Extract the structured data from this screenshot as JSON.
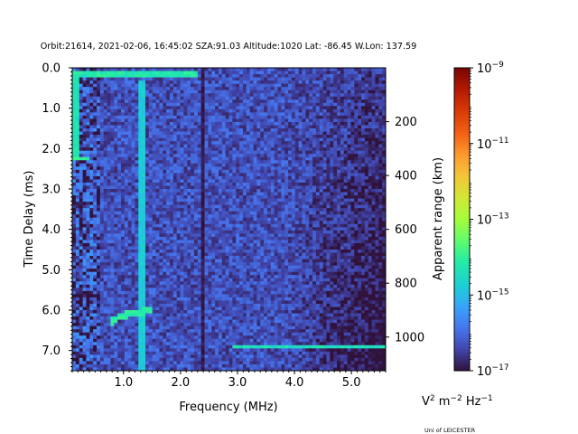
{
  "chart_data": {
    "type": "heatmap",
    "title": "Orbit:21614, 2021-02-06, 16:45:02 SZA:91.03 Altitude:1020 Lat: -86.45 W.Lon: 137.59",
    "xlabel": "Frequency (MHz)",
    "ylabel": "Time Delay (ms)",
    "y2label": "Apparent range (km)",
    "xlim": [
      0.1,
      5.6
    ],
    "ylim": [
      7.5,
      0.0
    ],
    "y2lim": [
      1125,
      0
    ],
    "x_ticks": [
      "1.0",
      "2.0",
      "3.0",
      "4.0",
      "5.0"
    ],
    "x_tick_values": [
      1.0,
      2.0,
      3.0,
      4.0,
      5.0
    ],
    "y_ticks": [
      "0.0",
      "1.0",
      "2.0",
      "3.0",
      "4.0",
      "5.0",
      "6.0",
      "7.0"
    ],
    "y_tick_values": [
      0.0,
      1.0,
      2.0,
      3.0,
      4.0,
      5.0,
      6.0,
      7.0
    ],
    "y2_ticks": [
      "200",
      "400",
      "600",
      "800",
      "1000"
    ],
    "y2_tick_values": [
      200,
      400,
      600,
      800,
      1000
    ],
    "colorbar": {
      "label_base": "V",
      "label_sup1": "2",
      "label_mid": " m",
      "label_sup2": "−2",
      "label_end": " Hz",
      "label_sup3": "−1",
      "tick_bases": [
        "10",
        "10",
        "10",
        "10",
        "10"
      ],
      "tick_exps": [
        "−9",
        "−11",
        "−13",
        "−15",
        "−17"
      ],
      "log_values": [
        -9,
        -11,
        -13,
        -15,
        -17
      ],
      "log_range": [
        -17,
        -9
      ],
      "colormap": "turbo"
    },
    "features": {
      "background_log_level": -16.3,
      "vertical_bands": [
        {
          "frequency": 0.15,
          "log_level": -14.3,
          "delay_range": [
            0.1,
            2.3
          ]
        },
        {
          "frequency": 1.32,
          "log_level": -14.8,
          "delay_range": [
            0.3,
            7.5
          ]
        },
        {
          "frequency": 2.38,
          "log_level": -16.9,
          "delay_range": [
            0.0,
            7.5
          ]
        }
      ],
      "horizontal_bands": [
        {
          "delay": 0.15,
          "log_level": -14.2,
          "frequency_range": [
            0.1,
            2.3
          ]
        },
        {
          "delay": 2.25,
          "log_level": -14.0,
          "frequency_range": [
            0.1,
            0.4
          ]
        },
        {
          "delay": 6.9,
          "log_level": -14.4,
          "frequency_range": [
            2.9,
            5.6
          ]
        }
      ],
      "curved_trace": {
        "frequency_range": [
          0.8,
          1.5
        ],
        "delay_range": [
          6.0,
          6.3
        ],
        "log_level": -14.1
      }
    }
  },
  "credit": "Uni of LEICESTER"
}
